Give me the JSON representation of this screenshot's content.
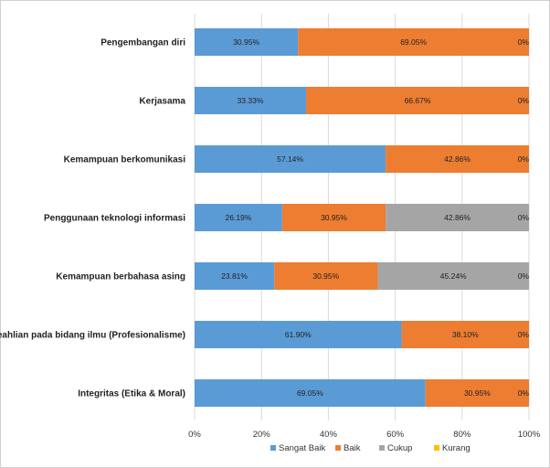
{
  "chart_data": {
    "type": "bar",
    "orientation": "horizontal",
    "stacked": true,
    "categories": [
      "Pengembangan diri",
      "Kerjasama",
      "Kemampuan berkomunikasi",
      "Penggunaan teknologi informasi",
      "Kemampuan berbahasa asing",
      "Keahlian pada bidang ilmu (Profesionalisme)",
      "Integritas (Etika & Moral)"
    ],
    "series": [
      {
        "name": "Sangat Baik",
        "color": "#5b9bd5",
        "values": [
          30.95,
          33.33,
          57.14,
          26.19,
          23.81,
          61.9,
          69.05
        ],
        "labels": [
          "30.95%",
          "33.33%",
          "57.14%",
          "26.19%",
          "23.81%",
          "61.90%",
          "69.05%"
        ]
      },
      {
        "name": "Baik",
        "color": "#ed7d31",
        "values": [
          69.05,
          66.67,
          42.86,
          30.95,
          30.95,
          38.1,
          30.95
        ],
        "labels": [
          "69.05%",
          "66.67%",
          "42.86%",
          "30.95%",
          "30.95%",
          "38.10%",
          "30.95%"
        ]
      },
      {
        "name": "Cukup",
        "color": "#a5a5a5",
        "values": [
          0,
          0,
          0,
          42.86,
          45.24,
          0,
          0
        ],
        "labels": [
          "",
          "",
          "",
          "42.86%",
          "45.24%",
          "",
          ""
        ]
      },
      {
        "name": "Kurang",
        "color": "#ffc000",
        "values": [
          0,
          0,
          0,
          0,
          0,
          0,
          0
        ],
        "labels": [
          "0%",
          "0%",
          "0%",
          "0%",
          "0%",
          "0%",
          "0%"
        ]
      }
    ],
    "xlim": [
      0,
      100
    ],
    "xticks": [
      "0%",
      "20%",
      "40%",
      "60%",
      "80%",
      "100%"
    ],
    "grid": true,
    "legend": "bottom"
  }
}
